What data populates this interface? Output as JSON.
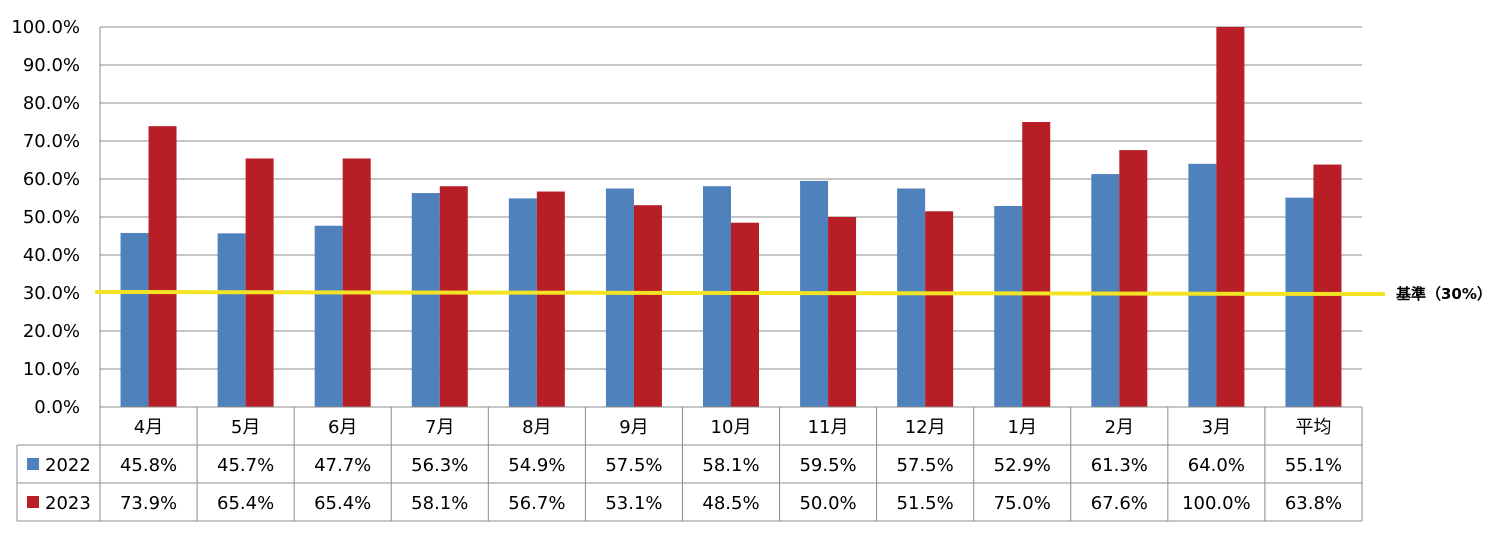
{
  "chart_data": {
    "type": "bar",
    "categories": [
      "4月",
      "5月",
      "6月",
      "7月",
      "8月",
      "9月",
      "10月",
      "11月",
      "12月",
      "1月",
      "2月",
      "3月",
      "平均"
    ],
    "series": [
      {
        "name": "2022",
        "values": [
          45.8,
          45.7,
          47.7,
          56.3,
          54.9,
          57.5,
          58.1,
          59.5,
          57.5,
          52.9,
          61.3,
          64.0,
          55.1
        ],
        "labels": [
          "45.8%",
          "45.7%",
          "47.7%",
          "56.3%",
          "54.9%",
          "57.5%",
          "58.1%",
          "59.5%",
          "57.5%",
          "52.9%",
          "61.3%",
          "64.0%",
          "55.1%"
        ],
        "color": "#4f81bd"
      },
      {
        "name": "2023",
        "values": [
          73.9,
          65.4,
          65.4,
          58.1,
          56.7,
          53.1,
          48.5,
          50.0,
          51.5,
          75.0,
          67.6,
          100.0,
          63.8
        ],
        "labels": [
          "73.9%",
          "65.4%",
          "65.4%",
          "58.1%",
          "56.7%",
          "53.1%",
          "48.5%",
          "50.0%",
          "51.5%",
          "75.0%",
          "67.6%",
          "100.0%",
          "63.8%"
        ],
        "color": "#b81e25"
      }
    ],
    "ylim": [
      0,
      100
    ],
    "yticks": [
      "0.0%",
      "10.0%",
      "20.0%",
      "30.0%",
      "40.0%",
      "50.0%",
      "60.0%",
      "70.0%",
      "80.0%",
      "90.0%",
      "100.0%"
    ],
    "grid": true,
    "data_table": true,
    "reference_line": {
      "value": 30,
      "label": "基準（30%）",
      "color": "#f2e324"
    }
  }
}
